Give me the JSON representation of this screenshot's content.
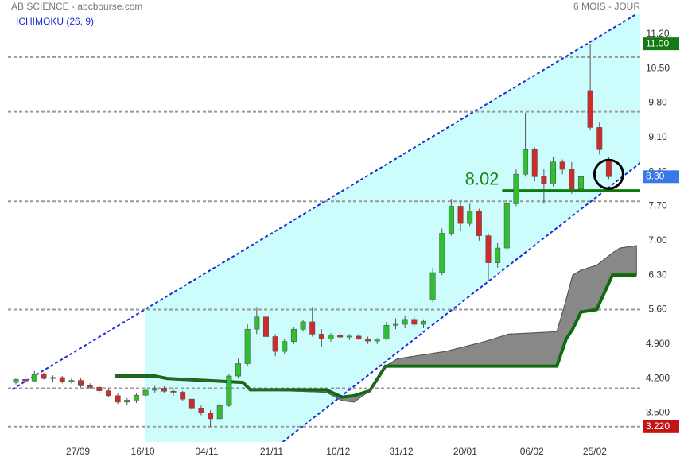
{
  "chart_data": {
    "type": "candlestick",
    "title": "AB SCIENCE - abcbourse.com",
    "subtitle": "6 MOIS - JOUR",
    "indicator": "ICHIMOKU (26, 9)",
    "xlim": [
      -0.86,
      67.4
    ],
    "ylim": [
      2.91,
      11.6
    ],
    "xticks": [
      {
        "value": 6.7,
        "label": "27/09"
      },
      {
        "value": 13.7,
        "label": "16/10"
      },
      {
        "value": 20.6,
        "label": "04/11"
      },
      {
        "value": 27.6,
        "label": "21/11"
      },
      {
        "value": 34.8,
        "label": "10/12"
      },
      {
        "value": 41.6,
        "label": "31/12"
      },
      {
        "value": 48.5,
        "label": "20/01"
      },
      {
        "value": 55.7,
        "label": "06/02"
      },
      {
        "value": 62.5,
        "label": "25/02"
      }
    ],
    "yticks": [
      {
        "value": 11.2,
        "label": "11.20"
      },
      {
        "value": 10.5,
        "label": "10.50"
      },
      {
        "value": 9.8,
        "label": "9.80"
      },
      {
        "value": 9.1,
        "label": "9.10"
      },
      {
        "value": 8.4,
        "label": "8.40"
      },
      {
        "value": 7.7,
        "label": "7.70"
      },
      {
        "value": 7.0,
        "label": "7.00"
      },
      {
        "value": 6.3,
        "label": "6.30"
      },
      {
        "value": 5.6,
        "label": "5.60"
      },
      {
        "value": 4.9,
        "label": "4.900"
      },
      {
        "value": 4.2,
        "label": "4.200"
      },
      {
        "value": 3.5,
        "label": "3.500"
      }
    ],
    "reference_levels": [
      10.73,
      9.62,
      7.8,
      5.6,
      4.0,
      3.22
    ],
    "candles": {
      "open": [
        4.12,
        4.18,
        4.15,
        4.28,
        4.2,
        4.22,
        4.14,
        4.16,
        4.05,
        4.02,
        3.95,
        3.85,
        3.72,
        3.76,
        3.86,
        3.96,
        4.0,
        3.94,
        3.92,
        3.78,
        3.6,
        3.5,
        3.38,
        3.65,
        4.25,
        4.5,
        5.2,
        5.45,
        5.05,
        4.75,
        4.95,
        5.2,
        5.35,
        5.1,
        5.0,
        5.08,
        5.04,
        5.06,
        5.0,
        4.96,
        5.0,
        5.28,
        5.3,
        5.4,
        5.3,
        5.8,
        6.35,
        7.15,
        7.7,
        7.35,
        7.6,
        7.1,
        6.55,
        6.85,
        7.75,
        8.35,
        8.85,
        8.3,
        8.15,
        8.6,
        8.45,
        8.05,
        10.05,
        9.3,
        8.65
      ],
      "high": [
        4.2,
        4.25,
        4.35,
        4.32,
        4.26,
        4.25,
        4.2,
        4.2,
        4.1,
        4.05,
        4.0,
        3.9,
        3.8,
        3.9,
        4.0,
        4.05,
        4.04,
        3.98,
        3.95,
        3.8,
        3.65,
        3.55,
        3.7,
        4.3,
        4.6,
        5.3,
        5.65,
        5.5,
        5.1,
        5.0,
        5.25,
        5.4,
        5.65,
        5.2,
        5.12,
        5.12,
        5.1,
        5.1,
        5.05,
        5.02,
        5.35,
        5.42,
        5.48,
        5.45,
        5.4,
        6.45,
        7.25,
        7.85,
        7.8,
        7.75,
        7.65,
        7.15,
        6.95,
        7.85,
        8.45,
        9.6,
        8.9,
        8.45,
        8.7,
        8.65,
        8.6,
        8.4,
        11.0,
        9.4,
        8.7
      ],
      "low": [
        4.08,
        4.12,
        4.12,
        4.18,
        4.12,
        4.1,
        4.1,
        4.02,
        3.98,
        3.9,
        3.82,
        3.68,
        3.65,
        3.7,
        3.82,
        3.9,
        3.9,
        3.85,
        3.75,
        3.55,
        3.45,
        3.22,
        3.35,
        3.62,
        4.2,
        4.45,
        5.1,
        5.0,
        4.65,
        4.7,
        4.9,
        5.15,
        5.05,
        4.85,
        4.95,
        5.0,
        4.98,
        4.98,
        4.9,
        4.9,
        4.98,
        5.2,
        5.22,
        5.25,
        5.22,
        5.75,
        6.3,
        7.1,
        7.2,
        7.3,
        7.0,
        6.2,
        6.45,
        6.8,
        7.7,
        8.3,
        8.2,
        7.75,
        8.1,
        8.35,
        7.95,
        7.95,
        9.25,
        8.75,
        8.25
      ],
      "close": [
        4.18,
        4.15,
        4.28,
        4.2,
        4.22,
        4.14,
        4.16,
        4.05,
        4.02,
        3.95,
        3.85,
        3.72,
        3.76,
        3.86,
        3.96,
        4.0,
        3.94,
        3.92,
        3.78,
        3.6,
        3.5,
        3.38,
        3.65,
        4.25,
        4.5,
        5.2,
        5.45,
        5.05,
        4.75,
        4.95,
        5.2,
        5.35,
        5.1,
        5.0,
        5.08,
        5.04,
        5.06,
        5.0,
        4.96,
        5.0,
        5.28,
        5.3,
        5.4,
        5.3,
        5.36,
        6.35,
        7.15,
        7.7,
        7.35,
        7.6,
        7.1,
        6.55,
        6.85,
        7.75,
        8.35,
        8.85,
        8.3,
        8.15,
        8.6,
        8.45,
        8.05,
        8.3,
        9.3,
        8.85,
        8.3
      ]
    },
    "cloud": {
      "x": [
        10.7,
        15.0,
        16.3,
        24.5,
        25.3,
        33.5,
        35.2,
        36.5,
        38.2,
        39.9,
        41.2,
        46.4,
        50.6,
        53.2,
        58.4,
        59.4,
        60.1,
        61.0,
        62.7,
        64.4,
        65.2,
        67.0
      ],
      "span_a": [
        4.25,
        4.25,
        4.2,
        4.12,
        3.97,
        3.92,
        3.75,
        3.72,
        3.95,
        4.45,
        4.6,
        4.75,
        4.95,
        5.1,
        5.15,
        5.8,
        6.3,
        6.4,
        6.5,
        6.75,
        6.85,
        6.9
      ],
      "span_b": [
        4.25,
        4.25,
        4.2,
        4.12,
        3.97,
        3.97,
        3.82,
        3.85,
        3.95,
        4.45,
        4.45,
        4.45,
        4.45,
        4.45,
        4.45,
        5.0,
        5.2,
        5.55,
        5.6,
        6.3,
        6.3,
        6.3
      ]
    },
    "channel": {
      "upper": {
        "x": [
          -0.4,
          67.4
        ],
        "y": [
          3.98,
          11.65
        ]
      },
      "lower": {
        "x": [
          28.8,
          67.4
        ],
        "y": [
          2.91,
          8.58
        ]
      },
      "fill_from": 13.9
    },
    "support_level": 8.02,
    "support_from": 52.5,
    "highlight": {
      "x": 64,
      "y": 8.35
    },
    "price_markers": [
      {
        "value": 11.0,
        "label": "11.00",
        "color": "#157a15"
      },
      {
        "value": 8.3,
        "label": "8.30",
        "color": "#3a78e6"
      },
      {
        "value": 3.22,
        "label": "3.220",
        "color": "#c41414"
      }
    ]
  }
}
